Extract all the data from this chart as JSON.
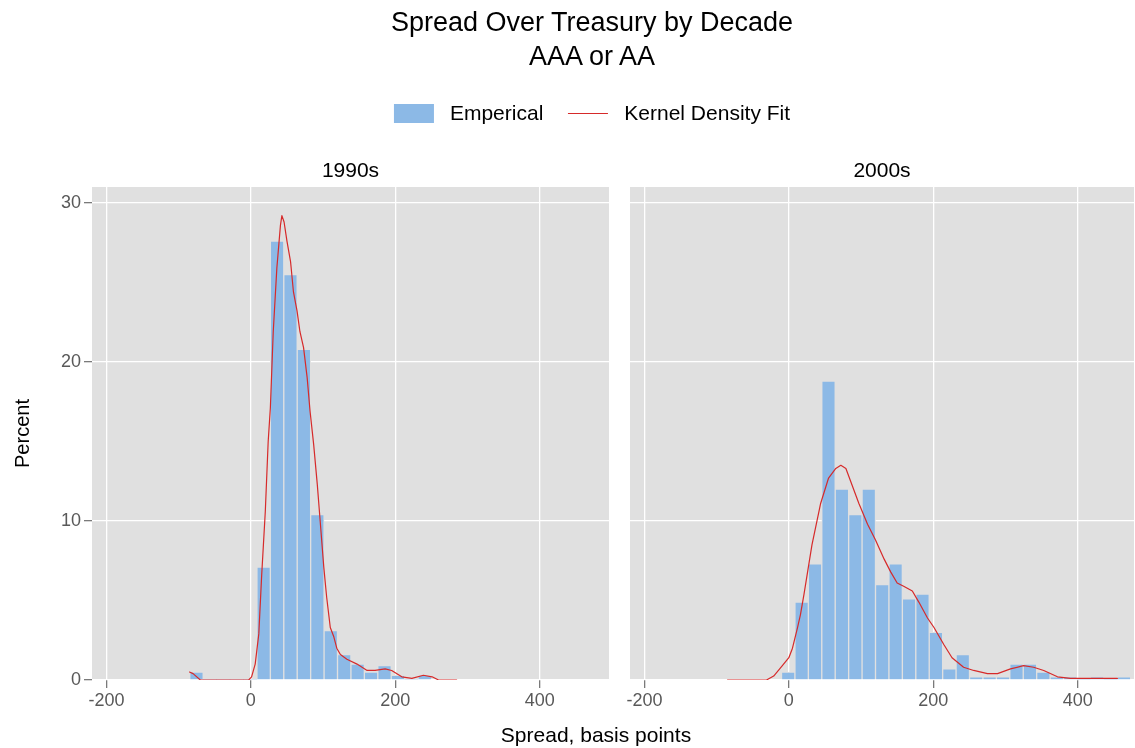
{
  "chart_data": [
    {
      "type": "histogram",
      "title": "Spread Over Treasury by Decade",
      "subtitle": "AAA or AA",
      "annotations": [
        "1990s"
      ],
      "xlabel": "Spread, basis points",
      "ylabel": "Percent",
      "legend": "top",
      "grid": true,
      "bins": [
        -84.6,
        -66,
        -47.4,
        -28.8,
        -10.2,
        8.4,
        27,
        45.6,
        64.2,
        82.8,
        101.4,
        120,
        138.6,
        157.2,
        175.8,
        194.4,
        213,
        231.6,
        250.2
      ],
      "series": [
        {
          "name": "Emperical",
          "color": "#8cb9e6",
          "values": [
            0.5,
            0,
            0,
            0,
            0,
            7.1,
            27.6,
            25.5,
            20.8,
            10.4,
            3.1,
            1.6,
            1.0,
            0.5,
            0.9,
            0.3,
            0,
            0.3
          ]
        },
        {
          "name": "Kernel Density Fit",
          "type": "line",
          "color": "#d62a2a",
          "x": [
            -85,
            -80,
            -70,
            -3,
            1,
            6,
            11,
            15,
            20,
            24,
            27,
            31,
            36,
            41,
            43,
            46,
            50,
            55,
            59,
            64,
            68,
            73,
            78,
            82,
            87,
            92,
            96,
            101,
            105,
            110,
            115,
            119,
            124,
            133,
            147,
            161,
            172,
            186,
            195,
            209,
            223,
            239,
            251,
            260,
            285
          ],
          "values": [
            0.5,
            0.4,
            0,
            0,
            0.2,
            1.0,
            2.9,
            6.6,
            10.6,
            15.0,
            17.1,
            21.9,
            25.9,
            28.6,
            29.2,
            28.8,
            27.6,
            26.3,
            24.4,
            23.2,
            21.9,
            20.9,
            19.0,
            16.9,
            14.8,
            12.3,
            10.0,
            7.1,
            5.2,
            3.3,
            2.7,
            2.0,
            1.6,
            1.3,
            1.0,
            0.6,
            0.6,
            0.7,
            0.6,
            0.2,
            0.1,
            0.3,
            0.2,
            0,
            0
          ]
        }
      ],
      "xlim": [
        -220,
        496
      ],
      "ylim": [
        0,
        31
      ],
      "xticks": [
        -200,
        0,
        200,
        400
      ],
      "yticks": [
        0,
        10,
        20,
        30
      ]
    },
    {
      "type": "histogram",
      "annotations": [
        "2000s"
      ],
      "tick_labels": "x",
      "grid": true,
      "bins": [
        -10.2,
        8.4,
        27,
        45.6,
        64.2,
        82.8,
        101.4,
        120,
        138.6,
        157.2,
        175.8,
        194.4,
        213,
        231.6,
        250.2,
        268.8,
        287.4,
        306,
        324.6,
        343.2,
        361.8,
        380.4,
        399,
        417.6,
        436.2,
        454.8,
        473.4
      ],
      "series": [
        {
          "color": "#8cb9e6",
          "values": [
            0.5,
            4.9,
            7.3,
            18.8,
            12.0,
            10.4,
            12.0,
            6.0,
            7.3,
            5.1,
            5.4,
            3.0,
            0.7,
            1.6,
            0.2,
            0.2,
            0.2,
            1.0,
            1.0,
            0.5,
            0.2,
            0.2,
            0,
            0.2,
            0,
            0.2
          ]
        },
        {
          "type": "line",
          "color": "#d62a2a",
          "x": [
            -85,
            -31,
            -21,
            -9,
            0,
            5,
            12,
            16,
            21,
            32,
            44,
            55,
            65,
            72,
            79,
            88,
            97,
            109,
            120,
            132,
            141,
            150,
            159,
            171,
            180,
            192,
            201,
            215,
            226,
            242,
            256,
            275,
            289,
            307,
            325,
            339,
            353,
            372,
            390,
            413,
            455
          ],
          "values": [
            0,
            0,
            0.25,
            0.9,
            1.4,
            2.0,
            3.3,
            4.1,
            5.4,
            8.5,
            11.1,
            12.7,
            13.3,
            13.5,
            13.3,
            12.2,
            11.1,
            9.8,
            8.8,
            7.6,
            6.8,
            6.1,
            5.9,
            5.6,
            4.9,
            3.9,
            3.3,
            2.2,
            1.4,
            0.8,
            0.6,
            0.4,
            0.4,
            0.7,
            0.9,
            0.8,
            0.6,
            0.2,
            0.1,
            0.1,
            0.1
          ]
        }
      ],
      "xlim": [
        -220,
        478
      ],
      "ylim": [
        0,
        31
      ],
      "xticks": [
        -200,
        0,
        200,
        400
      ],
      "yticks": [
        0,
        10,
        20,
        30
      ]
    }
  ]
}
